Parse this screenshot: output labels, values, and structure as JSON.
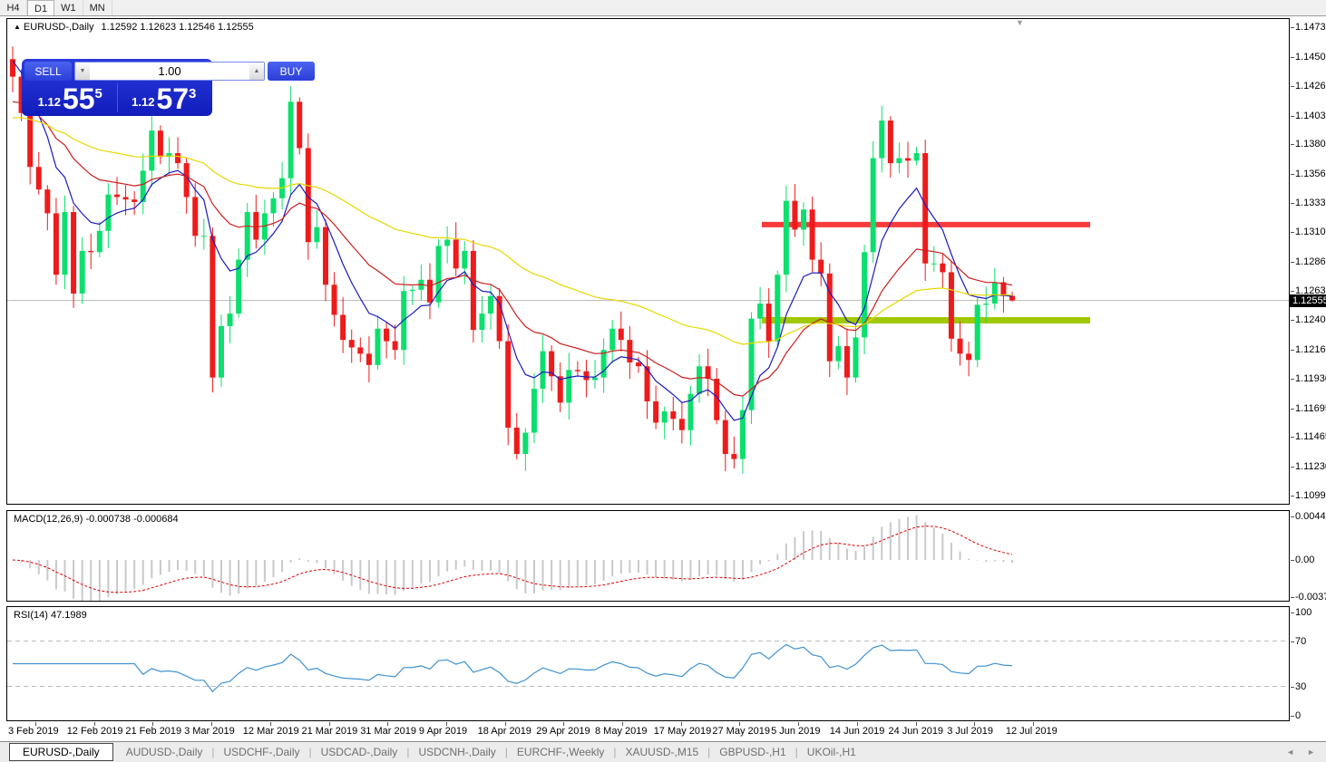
{
  "toolbar": {
    "buttons": [
      {
        "label": "H4",
        "active": false
      },
      {
        "label": "D1",
        "active": true
      },
      {
        "label": "W1",
        "active": false
      },
      {
        "label": "MN",
        "active": false
      }
    ]
  },
  "icons": {
    "title_marker": "▲",
    "chart_marker": "▼",
    "spinner_down": "▼",
    "spinner_up": "▲",
    "scroll_left": "◄",
    "scroll_right": "►"
  },
  "header": {
    "symbol_text": "EURUSD-,Daily",
    "ohlc_text": "1.12592 1.12623 1.12546 1.12555"
  },
  "trade_panel": {
    "sell_label": "SELL",
    "buy_label": "BUY",
    "volume": "1.00",
    "sell_price": {
      "frac": "1.12",
      "big": "55",
      "sup": "5"
    },
    "buy_price": {
      "frac": "1.12",
      "big": "57",
      "sup": "3"
    }
  },
  "chart_data": {
    "type": "candlestick",
    "symbol": "EURUSD-",
    "timeframe": "Daily",
    "first_open": 1.1448,
    "closes": [
      1.1434,
      1.1405,
      1.1362,
      1.1344,
      1.1325,
      1.1276,
      1.1326,
      1.1261,
      1.1295,
      1.1294,
      1.1311,
      1.134,
      1.1338,
      1.1336,
      1.1334,
      1.1359,
      1.1391,
      1.137,
      1.1373,
      1.1365,
      1.1338,
      1.1307,
      1.1307,
      1.1194,
      1.1235,
      1.1245,
      1.1288,
      1.1326,
      1.1304,
      1.1325,
      1.1337,
      1.1353,
      1.1414,
      1.1377,
      1.1302,
      1.1314,
      1.1268,
      1.1244,
      1.1224,
      1.1218,
      1.1213,
      1.1204,
      1.1233,
      1.1223,
      1.1216,
      1.1263,
      1.1264,
      1.1272,
      1.1254,
      1.1299,
      1.1304,
      1.1281,
      1.1295,
      1.1232,
      1.1245,
      1.1259,
      1.1223,
      1.1154,
      1.1133,
      1.115,
      1.1185,
      1.1215,
      1.1195,
      1.1174,
      1.12,
      1.1199,
      1.1192,
      1.1194,
      1.1216,
      1.1233,
      1.1224,
      1.1206,
      1.1203,
      1.1175,
      1.1158,
      1.1167,
      1.1161,
      1.1152,
      1.1181,
      1.1203,
      1.1193,
      1.116,
      1.1133,
      1.1129,
      1.1168,
      1.1241,
      1.1253,
      1.1223,
      1.1276,
      1.1335,
      1.1312,
      1.1328,
      1.1288,
      1.1277,
      1.1207,
      1.1219,
      1.1194,
      1.1226,
      1.1294,
      1.1369,
      1.1399,
      1.1365,
      1.1369,
      1.1367,
      1.1373,
      1.1285,
      1.1285,
      1.1278,
      1.1225,
      1.1213,
      1.1208,
      1.1252,
      1.1253,
      1.127,
      1.1259,
      1.12555
    ],
    "last_candle": {
      "open": 1.12592,
      "high": 1.12623,
      "low": 1.12546,
      "close": 1.12555
    },
    "current_price": 1.12555,
    "current_price_text": "1.12555",
    "price_ticks": [
      "1.14735",
      "1.14500",
      "1.14265",
      "1.14030",
      "1.13800",
      "1.13565",
      "1.13330",
      "1.13100",
      "1.12865",
      "1.12630",
      "1.12400",
      "1.12165",
      "1.11930",
      "1.11695",
      "1.11465",
      "1.11230",
      "1.10995"
    ],
    "price_range": {
      "top": 1.148,
      "bottom": 1.1094
    },
    "x_labels": [
      "3 Feb 2019",
      "12 Feb 2019",
      "21 Feb 2019",
      "3 Mar 2019",
      "12 Mar 2019",
      "21 Mar 2019",
      "31 Mar 2019",
      "9 Apr 2019",
      "18 Apr 2019",
      "29 Apr 2019",
      "8 May 2019",
      "17 May 2019",
      "27 May 2019",
      "5 Jun 2019",
      "14 Jun 2019",
      "24 Jun 2019",
      "3 Jul 2019",
      "12 Jul 2019"
    ],
    "colors": {
      "bull": "#0cdf6d",
      "bear": "#ee1b1b",
      "ma_fast": "#1b1bc0",
      "ma_medium": "#cc1e1e",
      "ma_slow": "#e6d800",
      "resistance": "#f73b3b",
      "support": "#a0c800",
      "current_line": "#b8b8b8",
      "macd_hist": "#c9c9c9",
      "macd_signal": "#dd0000",
      "rsi_line": "#3f92d2",
      "rsi_level": "#bbbbbb"
    },
    "moving_averages": [
      {
        "name": "ma-fast",
        "period": 8,
        "seed": 1.145
      },
      {
        "name": "ma-medium",
        "period": 21,
        "seed": 1.1412
      },
      {
        "name": "ma-slow",
        "period": 55,
        "seed": 1.14
      }
    ],
    "levels": {
      "resistance_price": 1.1316,
      "support_price": 1.124
    },
    "macd": {
      "label_text": "MACD(12,26,9) -0.000738 -0.000684",
      "fast": 12,
      "slow": 26,
      "signal": 9,
      "value": -0.000738,
      "signal_value": -0.000684,
      "vmax": 0.004465,
      "vmin": -0.003715,
      "ticks": [
        {
          "v": 0.004465,
          "label": "0.004465"
        },
        {
          "v": 0.0,
          "label": "0.00"
        },
        {
          "v": -0.003715,
          "label": "-0.003715"
        }
      ]
    },
    "rsi": {
      "label_text": "RSI(14) 47.1989",
      "period": 14,
      "value": 47.1989,
      "levels": [
        70,
        30
      ],
      "ticks": [
        {
          "v": 100,
          "label": "100"
        },
        {
          "v": 70,
          "label": "70"
        },
        {
          "v": 30,
          "label": "30"
        },
        {
          "v": 0,
          "label": "0"
        }
      ]
    }
  },
  "tabs": {
    "items": [
      {
        "label": "EURUSD-,Daily",
        "active": true
      },
      {
        "label": "AUDUSD-,Daily",
        "active": false
      },
      {
        "label": "USDCHF-,Daily",
        "active": false
      },
      {
        "label": "USDCAD-,Daily",
        "active": false
      },
      {
        "label": "USDCNH-,Daily",
        "active": false
      },
      {
        "label": "EURCHF-,Weekly",
        "active": false
      },
      {
        "label": "XAUUSD-,M15",
        "active": false
      },
      {
        "label": "GBPUSD-,H1",
        "active": false
      },
      {
        "label": "UKOil-,H1",
        "active": false
      }
    ]
  }
}
